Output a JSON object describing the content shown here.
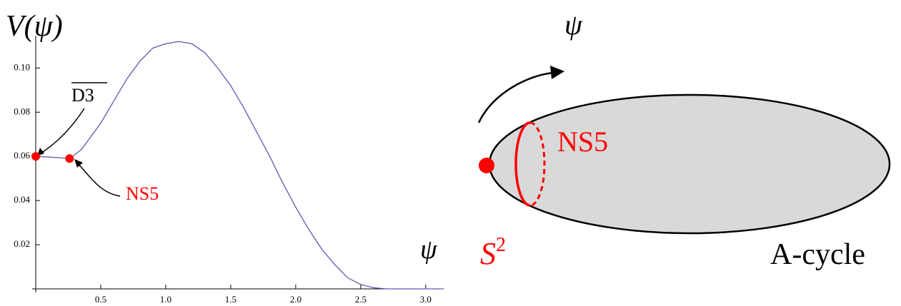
{
  "chart_data": {
    "type": "line",
    "y_label": "V(ψ)",
    "x_label": "ψ",
    "x": [
      0,
      0.1,
      0.2,
      0.26,
      0.35,
      0.5,
      0.6,
      0.7,
      0.8,
      0.9,
      1.0,
      1.1,
      1.2,
      1.3,
      1.4,
      1.5,
      1.6,
      1.7,
      1.8,
      1.9,
      2.0,
      2.1,
      2.2,
      2.3,
      2.4,
      2.5,
      2.6,
      2.7,
      2.8,
      3.0,
      3.14
    ],
    "values": [
      0.06,
      0.0597,
      0.0593,
      0.059,
      0.063,
      0.075,
      0.085,
      0.095,
      0.103,
      0.109,
      0.111,
      0.112,
      0.111,
      0.107,
      0.1,
      0.092,
      0.082,
      0.071,
      0.06,
      0.048,
      0.037,
      0.027,
      0.018,
      0.011,
      0.005,
      0.002,
      0.0005,
      0,
      0,
      0,
      0
    ],
    "color": "#5a5ab4",
    "points": [
      {
        "x": 0,
        "y": 0.06,
        "label": "D3",
        "color": "#ff0000"
      },
      {
        "x": 0.26,
        "y": 0.059,
        "label": "NS5",
        "color": "#ff0000"
      }
    ],
    "xlim": [
      0,
      3.1
    ],
    "ylim": [
      0,
      0.114
    ],
    "xticks": [
      0.5,
      {
        "value": 1,
        "label": "1.0"
      },
      1.5,
      {
        "value": 2,
        "label": "2.0"
      },
      2.5,
      {
        "value": 3,
        "label": "3.0"
      }
    ],
    "yticks": [
      0.02,
      0.04,
      0.06,
      0.08,
      {
        "value": 0.1,
        "label": "0.10"
      }
    ]
  },
  "diagram": {
    "psi_label": "ψ",
    "ns5_label": "NS5",
    "s2_label": "S",
    "s2_sup": "2",
    "cycle_label": "A-cycle"
  }
}
